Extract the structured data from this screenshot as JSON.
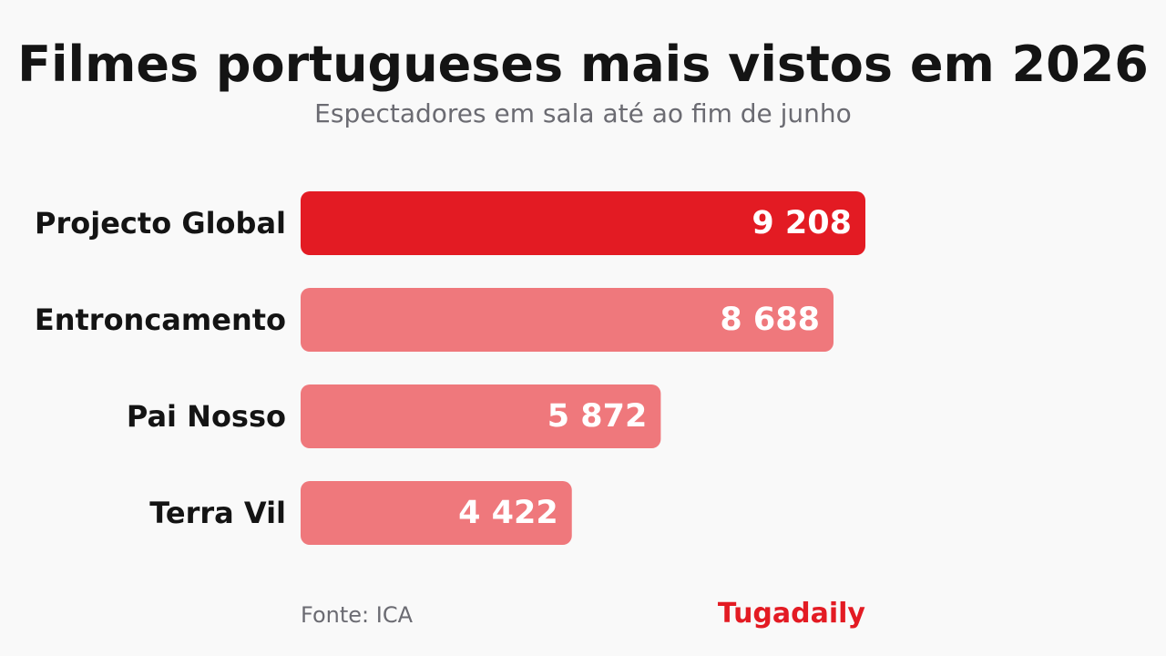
{
  "header": {
    "title": "Filmes portugueses mais vistos em 2026",
    "subtitle": "Espectadores em sala até ao fim de junho"
  },
  "footer": {
    "source": "Fonte: ICA",
    "brand": "Tugadaily"
  },
  "colors": {
    "highlight": "#e31b23",
    "bar": "#ef787c",
    "brand": "#e31b23"
  },
  "chart_data": {
    "type": "bar",
    "orientation": "horizontal",
    "categories": [
      "Projecto Global",
      "Entroncamento",
      "Pai Nosso",
      "Terra Vil"
    ],
    "values": [
      9208,
      8688,
      5872,
      4422
    ],
    "value_labels": [
      "9 208",
      "8 688",
      "5 872",
      "4 422"
    ],
    "highlight_index": 0,
    "title": "Filmes portugueses mais vistos em 2026",
    "subtitle": "Espectadores em sala até ao fim de junho",
    "xlim": [
      0,
      9208
    ],
    "grid": false,
    "legend": "none"
  }
}
